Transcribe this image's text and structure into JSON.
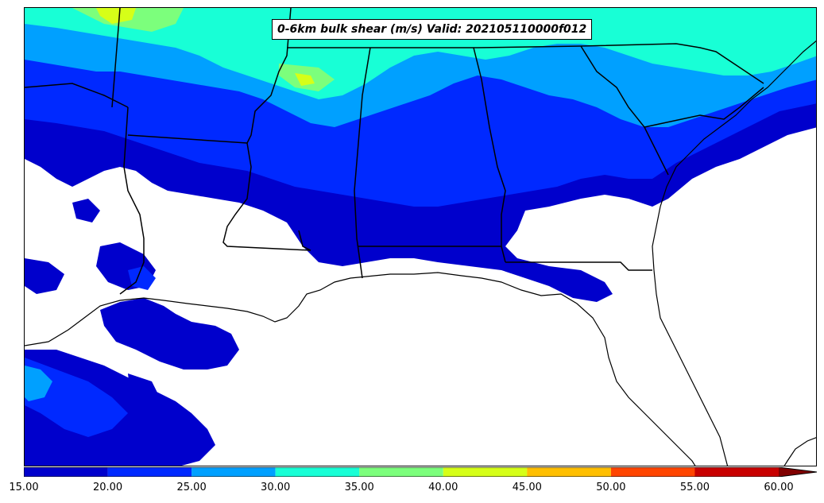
{
  "title": "0-6km bulk shear (m/s) Valid: 202105110000f012",
  "colorbar": {
    "ticks": [
      "15.00",
      "20.00",
      "25.00",
      "30.00",
      "35.00",
      "40.00",
      "45.00",
      "50.00",
      "55.00",
      "60.00"
    ],
    "colors": [
      "#0000cc",
      "#0029ff",
      "#00a0ff",
      "#18ffd6",
      "#7cff7c",
      "#d6ff18",
      "#ffbf00",
      "#ff4500",
      "#c80000",
      "#800000"
    ],
    "extend": "max"
  },
  "map": {
    "region": "southeastern-united-states",
    "fields": [
      "bulk-shear-contours"
    ],
    "layers": [
      "state-borders",
      "coastline"
    ]
  }
}
